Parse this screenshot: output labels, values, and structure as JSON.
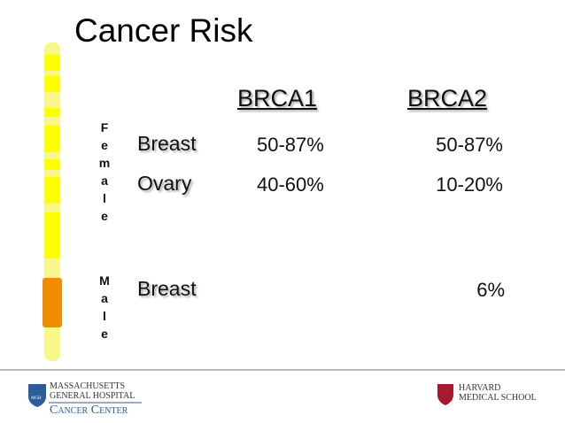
{
  "title": "Cancer Risk",
  "columns": [
    "BRCA1",
    "BRCA2"
  ],
  "groups": [
    {
      "name": "Female",
      "rows": [
        {
          "label": "Breast",
          "brca1": "50-87%",
          "brca2": "50-87%"
        },
        {
          "label": "Ovary",
          "brca1": "40-60%",
          "brca2": "10-20%"
        }
      ]
    },
    {
      "name": "Male",
      "rows": [
        {
          "label": "Breast",
          "brca2": "6%"
        }
      ]
    }
  ],
  "footer": {
    "mgh_mark": "MGH",
    "hospital_line1": "MASSACHUSETTS",
    "hospital_line2": "GENERAL HOSPITAL",
    "center": "Cancer Center",
    "school_line1": "HARVARD",
    "school_line2": "MEDICAL SCHOOL"
  }
}
